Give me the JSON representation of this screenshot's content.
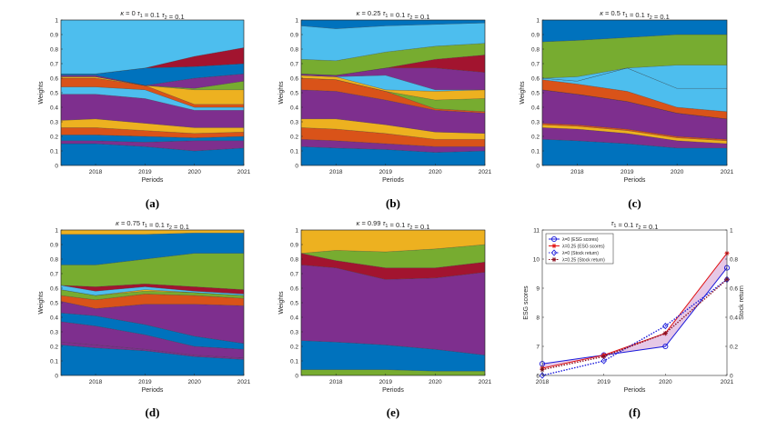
{
  "chart_data": [
    {
      "id": "a",
      "type": "area",
      "caption": "(a)",
      "title": "κ = 0  τ1 = 0.1  τ2 = 0.1",
      "xlabel": "Periods",
      "ylabel": "Weights",
      "categories": [
        "2018",
        "2019",
        "2020",
        "2021"
      ],
      "x": [
        2017.3,
        2018,
        2019,
        2020,
        2021
      ],
      "ylim": [
        0,
        1
      ],
      "yticks": [
        "0",
        "0.1",
        "0.2",
        "0.3",
        "0.4",
        "0.5",
        "0.6",
        "0.7",
        "0.8",
        "0.9",
        "1"
      ],
      "boundaries": [
        [
          0.15,
          0.15,
          0.13,
          0.1,
          0.12
        ],
        [
          0.17,
          0.17,
          0.16,
          0.17,
          0.17
        ],
        [
          0.21,
          0.21,
          0.2,
          0.19,
          0.2
        ],
        [
          0.26,
          0.26,
          0.24,
          0.22,
          0.23
        ],
        [
          0.31,
          0.32,
          0.29,
          0.26,
          0.26
        ],
        [
          0.49,
          0.49,
          0.46,
          0.38,
          0.38
        ],
        [
          0.54,
          0.54,
          0.52,
          0.4,
          0.4
        ],
        [
          0.6,
          0.6,
          0.55,
          0.42,
          0.42
        ],
        [
          0.61,
          0.61,
          0.55,
          0.52,
          0.52
        ],
        [
          0.61,
          0.61,
          0.55,
          0.53,
          0.58
        ],
        [
          0.62,
          0.62,
          0.55,
          0.6,
          0.63
        ],
        [
          0.63,
          0.63,
          0.67,
          0.68,
          0.7
        ],
        [
          0.63,
          0.63,
          0.67,
          0.75,
          0.81
        ],
        [
          1,
          1,
          1,
          1,
          1
        ]
      ]
    },
    {
      "id": "b",
      "type": "area",
      "caption": "(b)",
      "title": "κ = 0.25  τ1 = 0.1  τ2 = 0.1",
      "xlabel": "Periods",
      "ylabel": "Weights",
      "categories": [
        "2018",
        "2019",
        "2020",
        "2021"
      ],
      "x": [
        2017.3,
        2018,
        2019,
        2020,
        2021
      ],
      "ylim": [
        0,
        1
      ],
      "yticks": [
        "0",
        "0.1",
        "0.2",
        "0.3",
        "0.4",
        "0.5",
        "0.6",
        "0.7",
        "0.8",
        "0.9",
        "1"
      ],
      "boundaries": [
        [
          0.13,
          0.12,
          0.11,
          0.09,
          0.1
        ],
        [
          0.18,
          0.17,
          0.15,
          0.13,
          0.13
        ],
        [
          0.26,
          0.25,
          0.22,
          0.18,
          0.18
        ],
        [
          0.32,
          0.32,
          0.28,
          0.23,
          0.22
        ],
        [
          0.52,
          0.51,
          0.45,
          0.38,
          0.36
        ],
        [
          0.6,
          0.59,
          0.51,
          0.39,
          0.37
        ],
        [
          0.6,
          0.59,
          0.51,
          0.45,
          0.46
        ],
        [
          0.62,
          0.61,
          0.52,
          0.51,
          0.52
        ],
        [
          0.62,
          0.61,
          0.62,
          0.52,
          0.52
        ],
        [
          0.63,
          0.62,
          0.67,
          0.67,
          0.64
        ],
        [
          0.63,
          0.62,
          0.67,
          0.73,
          0.76
        ],
        [
          0.73,
          0.72,
          0.78,
          0.82,
          0.84
        ],
        [
          0.96,
          0.94,
          0.96,
          0.97,
          0.98
        ],
        [
          1,
          1,
          1,
          1,
          1
        ]
      ]
    },
    {
      "id": "c",
      "type": "area",
      "caption": "(c)",
      "title": "κ = 0.5  τ1 = 0.1  τ2 = 0.1",
      "xlabel": "Periods",
      "ylabel": "Weights",
      "categories": [
        "2018",
        "2019",
        "2020",
        "2021"
      ],
      "x": [
        2017.3,
        2018,
        2019,
        2020,
        2021
      ],
      "ylim": [
        0,
        1
      ],
      "yticks": [
        "0",
        "0.1",
        "0.2",
        "0.3",
        "0.4",
        "0.5",
        "0.6",
        "0.7",
        "0.8",
        "0.9",
        "1"
      ],
      "boundaries": [
        [
          0.18,
          0.17,
          0.15,
          0.12,
          0.12
        ],
        [
          0.26,
          0.25,
          0.22,
          0.17,
          0.15
        ],
        [
          0.28,
          0.27,
          0.24,
          0.19,
          0.17
        ],
        [
          0.29,
          0.28,
          0.25,
          0.2,
          0.18
        ],
        [
          0.52,
          0.49,
          0.44,
          0.36,
          0.32
        ],
        [
          0.52,
          0.49,
          0.44,
          0.36,
          0.32
        ],
        [
          0.59,
          0.56,
          0.51,
          0.4,
          0.37
        ],
        [
          0.6,
          0.58,
          0.67,
          0.53,
          0.53
        ],
        [
          0.6,
          0.58,
          0.67,
          0.53,
          0.53
        ],
        [
          0.6,
          0.61,
          0.67,
          0.69,
          0.69
        ],
        [
          0.85,
          0.86,
          0.88,
          0.9,
          0.9
        ],
        [
          1,
          1,
          1,
          1,
          1
        ]
      ]
    },
    {
      "id": "d",
      "type": "area",
      "caption": "(d)",
      "title": "κ = 0.75  τ1 = 0.1  τ2 = 0.1",
      "xlabel": "Periods",
      "ylabel": "Weights",
      "categories": [
        "2018",
        "2019",
        "2020",
        "2021"
      ],
      "x": [
        2017.3,
        2018,
        2019,
        2020,
        2021
      ],
      "ylim": [
        0,
        1
      ],
      "yticks": [
        "0",
        "0.1",
        "0.2",
        "0.3",
        "0.4",
        "0.5",
        "0.6",
        "0.7",
        "0.8",
        "0.9",
        "1"
      ],
      "boundaries": [
        [
          0.21,
          0.19,
          0.17,
          0.13,
          0.11
        ],
        [
          0.23,
          0.21,
          0.18,
          0.14,
          0.12
        ],
        [
          0.37,
          0.34,
          0.28,
          0.2,
          0.18
        ],
        [
          0.43,
          0.41,
          0.35,
          0.27,
          0.22
        ],
        [
          0.51,
          0.46,
          0.49,
          0.49,
          0.48
        ],
        [
          0.55,
          0.52,
          0.56,
          0.55,
          0.53
        ],
        [
          0.59,
          0.55,
          0.58,
          0.57,
          0.55
        ],
        [
          0.59,
          0.55,
          0.59,
          0.57,
          0.55
        ],
        [
          0.62,
          0.58,
          0.61,
          0.58,
          0.56
        ],
        [
          0.62,
          0.61,
          0.63,
          0.61,
          0.59
        ],
        [
          0.76,
          0.76,
          0.8,
          0.84,
          0.84
        ],
        [
          0.97,
          0.97,
          0.97,
          0.98,
          0.98
        ],
        [
          1,
          1,
          1,
          1,
          1
        ]
      ]
    },
    {
      "id": "e",
      "type": "area",
      "caption": "(e)",
      "title": "κ = 0.99  τ1 = 0.1  τ2 = 0.1",
      "xlabel": "Periods",
      "ylabel": "Weights",
      "categories": [
        "2018",
        "2019",
        "2020",
        "2021"
      ],
      "x": [
        2017.3,
        2018,
        2019,
        2020,
        2021
      ],
      "ylim": [
        0,
        1
      ],
      "yticks": [
        "0",
        "0.1",
        "0.2",
        "0.3",
        "0.4",
        "0.5",
        "0.6",
        "0.7",
        "0.8",
        "0.9",
        "1"
      ],
      "boundaries": [
        [
          0.04,
          0.04,
          0.04,
          0.03,
          0.03
        ],
        [
          0.24,
          0.23,
          0.21,
          0.18,
          0.14
        ],
        [
          0.76,
          0.74,
          0.66,
          0.67,
          0.71
        ],
        [
          0.84,
          0.79,
          0.74,
          0.74,
          0.78
        ],
        [
          0.84,
          0.86,
          0.85,
          0.87,
          0.9
        ],
        [
          1,
          1,
          1,
          1,
          1
        ]
      ]
    },
    {
      "id": "f",
      "type": "line",
      "caption": "(f)",
      "title": "τ1 = 0.1  τ2 = 0.1",
      "xlabel": "Periods",
      "ylabel": "ESG scores",
      "y2label": "Stock return",
      "categories": [
        "2018",
        "2019",
        "2020",
        "2021"
      ],
      "ylim": [
        6,
        11
      ],
      "yticks": [
        "6",
        "7",
        "8",
        "9",
        "10",
        "11"
      ],
      "y2lim": [
        0,
        1
      ],
      "y2ticks": [
        "0",
        "0.2",
        "0.4",
        "0.6",
        "0.8",
        "1"
      ],
      "legend": [
        "λ=0 (ESG scores)",
        "λ=0.25 (ESG scores)",
        "λ=0 (Stock return)",
        "λ=0.25 (Stock return)"
      ],
      "series": [
        {
          "name": "λ=0 (ESG scores)",
          "axis": "left",
          "style": "solid-circle",
          "color": "#1a1adb",
          "values": [
            6.4,
            6.7,
            7.0,
            9.7
          ]
        },
        {
          "name": "λ=0.25 (ESG scores)",
          "axis": "left",
          "style": "solid-star",
          "color": "#e01010",
          "values": [
            6.25,
            6.7,
            7.45,
            10.2
          ]
        },
        {
          "name": "λ=0 (Stock return)",
          "axis": "right",
          "style": "dotted-diamond",
          "color": "#1a1adb",
          "values": [
            0.0,
            0.1,
            0.34,
            0.66
          ]
        },
        {
          "name": "λ=0.25 (Stock return)",
          "axis": "right",
          "style": "dotted-star",
          "color": "#8b1020",
          "values": [
            0.04,
            0.13,
            0.29,
            0.66
          ]
        }
      ]
    }
  ],
  "palette": [
    "#0072bd",
    "#7e2f8e",
    "#d95319",
    "#edb120",
    "#7e2f8e",
    "#4dbeee",
    "#77ac30",
    "#a2142f",
    "#4dbeee",
    "#0072bd",
    "#77ac30",
    "#0072bd",
    "#edb120"
  ],
  "fill_between_color": "#e6c8e6"
}
